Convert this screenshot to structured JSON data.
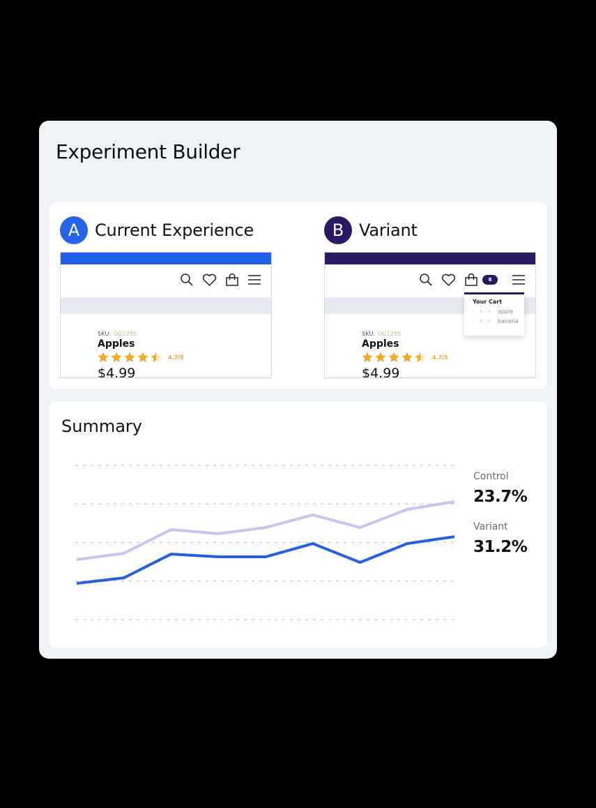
{
  "panel": {
    "title": "Experiment Builder"
  },
  "comparison": {
    "a": {
      "badge": "A",
      "label": "Current Experience",
      "bar_color": "#2060e8",
      "badge_color": "#2563eb",
      "product": {
        "sku_label": "SKU:",
        "sku": "OG1295",
        "name": "Apples",
        "rating": "4.7/5",
        "stars": 4.5,
        "price": "$4.99"
      }
    },
    "b": {
      "badge": "B",
      "label": "Variant",
      "bar_color": "#2b1a63",
      "badge_color": "#2b1a63",
      "cart_count": "8",
      "cart_popup": {
        "title": "Your Cart",
        "items": [
          {
            "qty": "- 4 +",
            "name": "apple"
          },
          {
            "qty": "- 4 +",
            "name": "banana"
          }
        ]
      },
      "product": {
        "sku_label": "SKU:",
        "sku": "OG1295",
        "name": "Apples",
        "rating": "4.7/5",
        "stars": 4.5,
        "price": "$4.99"
      }
    },
    "nav_icons": [
      "search-icon",
      "heart-icon",
      "shopping-bag-icon",
      "menu-icon"
    ]
  },
  "summary": {
    "title": "Summary",
    "legend": [
      {
        "label": "Control",
        "value": "23.7%",
        "color": "#cbc3ee"
      },
      {
        "label": "Variant",
        "value": "31.2%",
        "color": "#2460e0"
      }
    ]
  },
  "chart_data": {
    "type": "line",
    "title": "Summary",
    "xlabel": "",
    "ylabel": "",
    "x": [
      1,
      2,
      3,
      4,
      5,
      6,
      7,
      8,
      9
    ],
    "ylim": [
      0,
      100
    ],
    "grid": true,
    "gridlines": [
      0,
      25,
      50,
      75,
      100
    ],
    "legend_position": "right",
    "series": [
      {
        "name": "Control",
        "color": "#cbc3ee",
        "values": [
          38.9,
          43.0,
          58.4,
          55.7,
          59.7,
          67.9,
          59.7,
          71.5,
          76.5
        ],
        "summary": "23.7%"
      },
      {
        "name": "Variant",
        "color": "#2460e0",
        "values": [
          23.5,
          27.1,
          42.5,
          40.7,
          40.7,
          49.3,
          37.1,
          49.3,
          53.8
        ],
        "summary": "31.2%"
      }
    ]
  }
}
